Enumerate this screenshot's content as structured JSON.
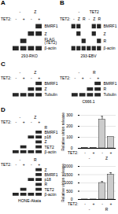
{
  "chart_data": [
    {
      "type": "blot",
      "title": "A",
      "subtitle": "293-RKO",
      "xlabel": "TET2:",
      "categories": [
        "-",
        "+",
        "-",
        "+"
      ],
      "groups": [
        {
          "label": "-",
          "count": 2
        },
        {
          "label": "Z",
          "count": 2
        }
      ],
      "rows": [
        "BMRF1",
        "Z",
        "FLAG\n(TET2)",
        "β-actin"
      ],
      "cells": [
        [
          0,
          0,
          0,
          1
        ],
        [
          0,
          0,
          1,
          1
        ],
        [
          0,
          1,
          0,
          0
        ],
        [
          1,
          1,
          1,
          1
        ]
      ]
    },
    {
      "type": "blot",
      "title": "B",
      "subtitle": "293-EBV",
      "xlabel": "TET2:",
      "categories": [
        "-",
        "Z",
        "R",
        "-",
        "Z",
        "R"
      ],
      "groups": [
        {
          "label": "-",
          "count": 3
        },
        {
          "label": "TET2",
          "count": 3
        }
      ],
      "rows": [
        "BMRF1",
        "Z",
        "R",
        "β-actin"
      ],
      "cells": [
        [
          1,
          1,
          0,
          0,
          1,
          1
        ],
        [
          0,
          1,
          0,
          0,
          1,
          0
        ],
        [
          0,
          0,
          1,
          0,
          0,
          1
        ],
        [
          1,
          1,
          1,
          1,
          1,
          1
        ]
      ]
    },
    {
      "type": "blot",
      "title": "C",
      "xlabel": "TET2:",
      "categories": [
        "-",
        "+",
        "-",
        "+"
      ],
      "groups": [
        {
          "label": "-",
          "count": 2
        },
        {
          "label": "Z",
          "count": 2
        }
      ],
      "rows": [
        "BMRF1",
        "Z",
        "Tubulin"
      ],
      "cells": [
        [
          0,
          0,
          0,
          1
        ],
        [
          0,
          0,
          1,
          1
        ],
        [
          1,
          1,
          1,
          1
        ]
      ]
    },
    {
      "type": "blot",
      "subtitle": "C666.1",
      "xlabel": "TET2:",
      "categories": [
        "-",
        "+",
        "-",
        "+"
      ],
      "groups": [
        {
          "label": "-",
          "count": 2
        },
        {
          "label": "R",
          "count": 2
        }
      ],
      "rows": [
        "BMRF1",
        "R",
        "Tubulin"
      ],
      "cells": [
        [
          0,
          0,
          0,
          1
        ],
        [
          0,
          0,
          1,
          1
        ],
        [
          1,
          1,
          1,
          1
        ]
      ]
    },
    {
      "type": "blot",
      "title": "D",
      "xlabel": "TET2:",
      "categories": [
        "-",
        "+",
        "-",
        "+"
      ],
      "groups": [
        {
          "label": "-",
          "count": 2
        },
        {
          "label": "Z",
          "count": 2
        }
      ],
      "rows": [
        "R",
        "BMRF1",
        "p18",
        "Z",
        "TET2",
        "β-actin"
      ],
      "cells": [
        [
          0,
          0,
          0,
          0
        ],
        [
          0,
          0,
          0,
          1
        ],
        [
          0,
          0,
          1,
          1
        ],
        [
          0,
          0,
          0,
          1
        ],
        [
          0,
          1,
          0,
          1
        ],
        [
          1,
          1,
          1,
          1
        ]
      ]
    },
    {
      "type": "blot",
      "subtitle": "HONE-Akata",
      "xlabel": "TET2:",
      "categories": [
        "-",
        "+",
        "-",
        "+"
      ],
      "groups": [
        {
          "label": "-",
          "count": 2
        },
        {
          "label": "R",
          "count": 2
        }
      ],
      "rows": [
        "Z",
        "BMRF1",
        "p18",
        "R",
        "TET2",
        "β-actin"
      ],
      "cells": [
        [
          0,
          0,
          0,
          1
        ],
        [
          0,
          0,
          0,
          1
        ],
        [
          0,
          0,
          1,
          1
        ],
        [
          0,
          0,
          0,
          1
        ],
        [
          0,
          1,
          0,
          1
        ],
        [
          1,
          1,
          1,
          1
        ]
      ]
    },
    {
      "type": "bar",
      "ylabel": "Relative virion release",
      "xlabel": "TET2:",
      "categories": [
        "-",
        "+",
        "-",
        "+"
      ],
      "groups": [
        {
          "label": "-",
          "count": 2
        },
        {
          "label": "Z",
          "count": 2
        }
      ],
      "values": [
        5,
        5,
        260,
        105
      ],
      "errors": [
        null,
        null,
        30,
        null
      ],
      "color": "#cccccc",
      "ylim": [
        0,
        300
      ],
      "yticks": [
        0,
        100,
        200,
        300
      ],
      "grid": true
    },
    {
      "type": "bar",
      "ylabel": "Relative virion release",
      "xlabel": "TET2:",
      "categories": [
        "-",
        "+",
        "-",
        "+"
      ],
      "groups": [
        {
          "label": "-",
          "count": 2
        },
        {
          "label": "R",
          "count": 2
        }
      ],
      "values": [
        5,
        5,
        1000,
        1500
      ],
      "errors": [
        null,
        null,
        80,
        120
      ],
      "color": "#cccccc",
      "ylim": [
        0,
        2000
      ],
      "yticks": [
        0,
        500,
        1000,
        1500,
        2000
      ],
      "grid": true
    }
  ]
}
